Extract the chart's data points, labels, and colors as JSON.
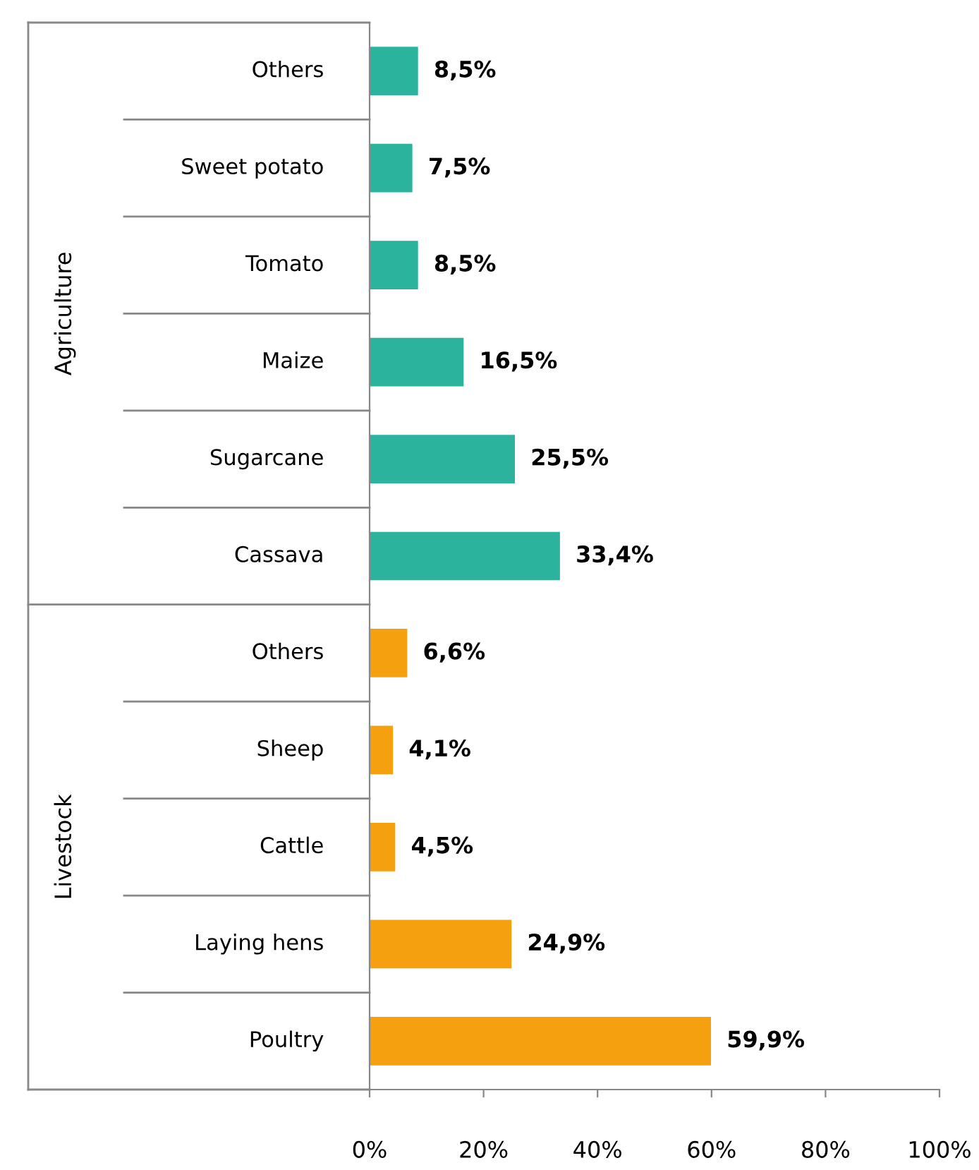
{
  "chart_data": {
    "type": "bar",
    "orientation": "horizontal",
    "categories": [
      "Others",
      "Sweet potato",
      "Tomato",
      "Maize",
      "Sugarcane",
      "Cassava",
      "Others",
      "Sheep",
      "Cattle",
      "Laying hens",
      "Poultry"
    ],
    "values": [
      8.5,
      7.5,
      8.5,
      16.5,
      25.5,
      33.4,
      6.6,
      4.1,
      4.5,
      24.9,
      59.9
    ],
    "colors": [
      "#2bb39e",
      "#2bb39e",
      "#2bb39e",
      "#2bb39e",
      "#2bb39e",
      "#2bb39e",
      "#f4a00f",
      "#f4a00f",
      "#f4a00f",
      "#f4a00f",
      "#f4a00f"
    ],
    "value_labels": [
      "8,5%",
      "7,5%",
      "8,5%",
      "16,5%",
      "25,5%",
      "33,4%",
      "6,6%",
      "4,1%",
      "4,5%",
      "24,9%",
      "59,9%"
    ],
    "xlim": [
      0,
      100
    ],
    "xticks": [
      {
        "value": 0,
        "label": "0%"
      },
      {
        "value": 20,
        "label": "20%"
      },
      {
        "value": 40,
        "label": "40%"
      },
      {
        "value": 60,
        "label": "60%"
      },
      {
        "value": 80,
        "label": "80%"
      },
      {
        "value": 100,
        "label": "100%"
      }
    ],
    "annotations": [
      "Agriculture",
      "Livestock"
    ],
    "grid": false
  }
}
